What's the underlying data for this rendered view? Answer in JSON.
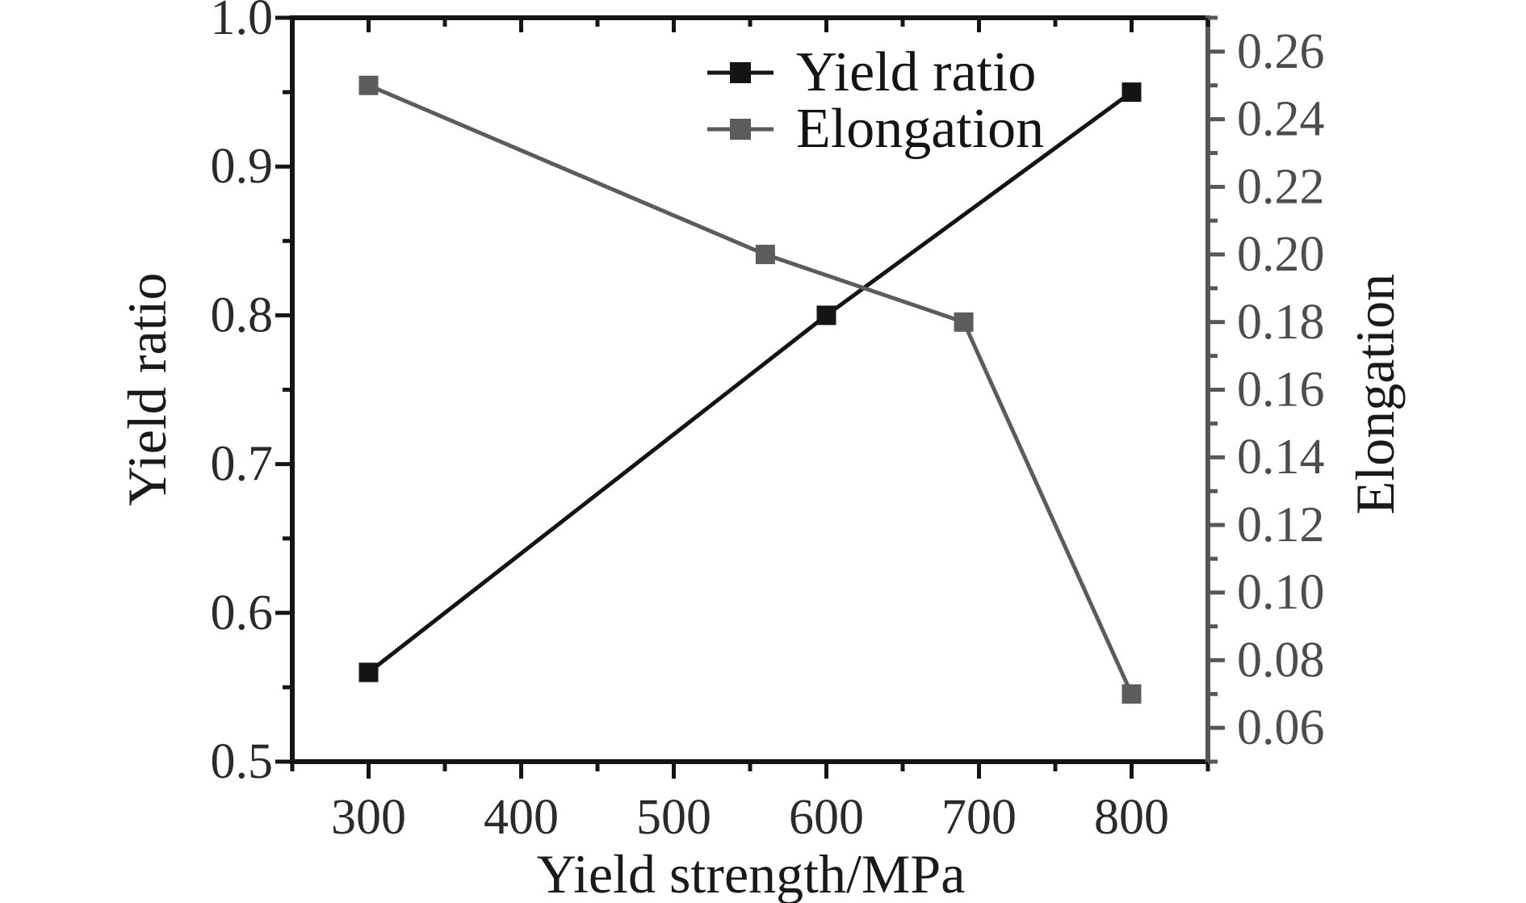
{
  "chart_data": {
    "type": "line",
    "title": "",
    "xlabel": "Yield strength/MPa",
    "ylabel_left": "Yield ratio",
    "ylabel_right": "Elongation",
    "x_range": [
      250,
      850
    ],
    "y_left_range": [
      0.5,
      1.0
    ],
    "y_right_range": [
      0.05,
      0.27
    ],
    "x_major_ticks": [
      300,
      400,
      500,
      600,
      700,
      800
    ],
    "x_minor_step": 50,
    "y_left_major_ticks": [
      0.5,
      0.6,
      0.7,
      0.8,
      0.9,
      1.0
    ],
    "y_left_minor_step": 0.05,
    "y_right_major_ticks": [
      0.06,
      0.08,
      0.1,
      0.12,
      0.14,
      0.16,
      0.18,
      0.2,
      0.22,
      0.24,
      0.26
    ],
    "y_right_minor_step": 0.01,
    "grid": false,
    "legend_position": "top-center-inside",
    "colors": {
      "black_axis": "#141414",
      "gray_axis": "#575757",
      "left_tick_text": "#2b2b2b",
      "right_tick_text": "#4d4d4d",
      "background": "#ffffff"
    },
    "series": [
      {
        "name": "Yield ratio",
        "axis": "left",
        "color": "#141414",
        "marker": "square",
        "x": [
          300,
          600,
          800
        ],
        "y": [
          0.56,
          0.8,
          0.95
        ]
      },
      {
        "name": "Elongation",
        "axis": "right",
        "color": "#5c5c5c",
        "marker": "square",
        "x": [
          300,
          560,
          690,
          800
        ],
        "y": [
          0.25,
          0.2,
          0.18,
          0.07
        ]
      }
    ]
  },
  "legend": {
    "items": [
      {
        "label": "Yield ratio"
      },
      {
        "label": "Elongation"
      }
    ]
  }
}
